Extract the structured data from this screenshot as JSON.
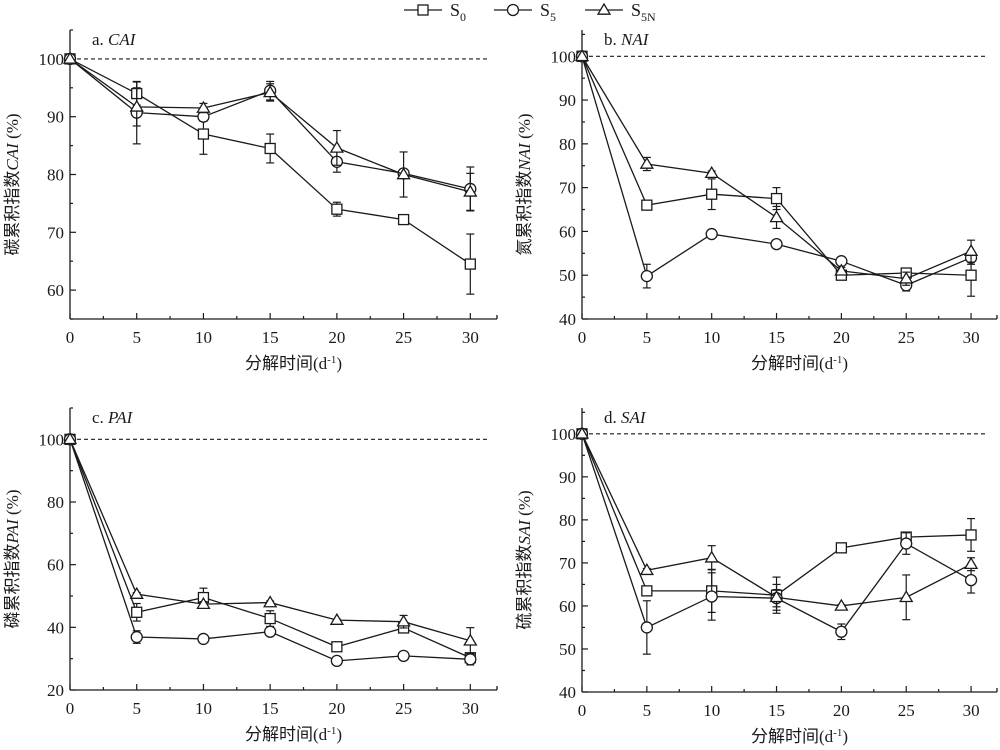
{
  "legend": [
    {
      "label": "S",
      "sub": "0",
      "marker": "square"
    },
    {
      "label": "S",
      "sub": "5",
      "marker": "circle"
    },
    {
      "label": "S",
      "sub": "5N",
      "marker": "triangle"
    }
  ],
  "chart_data": [
    {
      "type": "line",
      "panel": "a",
      "title_prefix": "a. ",
      "title_italic": "CAI",
      "ylabel_cn": "碳累积指数",
      "ylabel_italic": "CAI",
      "ylabel_suffix": " (%)",
      "xlabel": "分解时间(d",
      "xlabel_sup": "-1",
      "xlabel_close": ")",
      "x": [
        0,
        5,
        10,
        15,
        20,
        25,
        30
      ],
      "xticks": [
        0,
        5,
        10,
        15,
        20,
        25,
        30
      ],
      "xlim": [
        0,
        32
      ],
      "yticks": [
        60,
        70,
        80,
        90,
        100
      ],
      "ylim": [
        55,
        105
      ],
      "reference_line": 100,
      "series": [
        {
          "name": "S0",
          "marker": "square",
          "values": [
            100,
            94,
            87,
            84.5,
            74,
            72.2,
            64.5
          ],
          "errors": [
            0,
            2,
            3.5,
            2.5,
            1.2,
            0.3,
            5.2
          ]
        },
        {
          "name": "S5",
          "marker": "circle",
          "values": [
            100,
            90.7,
            90,
            94.5,
            82.2,
            80.2,
            77.5
          ],
          "errors": [
            0,
            5.4,
            0.8,
            1.6,
            1.8,
            0.5,
            3.8
          ]
        },
        {
          "name": "S5N",
          "marker": "triangle",
          "values": [
            100,
            91.7,
            91.5,
            94.2,
            84.6,
            80,
            77
          ],
          "errors": [
            0,
            3.3,
            0.8,
            1.5,
            3,
            3.9,
            3.2
          ]
        }
      ]
    },
    {
      "type": "line",
      "panel": "b",
      "title_prefix": "b. ",
      "title_italic": "NAI",
      "ylabel_cn": "氮累积指数",
      "ylabel_italic": "NAI",
      "ylabel_suffix": " (%)",
      "xlabel": "分解时间(d",
      "xlabel_sup": "-1",
      "xlabel_close": ")",
      "x": [
        0,
        5,
        10,
        15,
        20,
        25,
        30
      ],
      "xticks": [
        0,
        5,
        10,
        15,
        20,
        25,
        30
      ],
      "xlim": [
        0,
        32
      ],
      "yticks": [
        40,
        50,
        60,
        70,
        80,
        90,
        100
      ],
      "ylim": [
        40,
        106
      ],
      "reference_line": 100,
      "series": [
        {
          "name": "S0",
          "marker": "square",
          "values": [
            100,
            66,
            68.5,
            67.5,
            50,
            50.5,
            50
          ],
          "errors": [
            0,
            0.3,
            3.5,
            2.5,
            0.5,
            0.5,
            4.8
          ]
        },
        {
          "name": "S5",
          "marker": "circle",
          "values": [
            100,
            49.8,
            59.4,
            57.1,
            53.2,
            47.7,
            54
          ],
          "errors": [
            0,
            2.7,
            0.5,
            0.3,
            0.5,
            1.3,
            1.5
          ]
        },
        {
          "name": "S5N",
          "marker": "triangle",
          "values": [
            100,
            75.4,
            73.3,
            63.2,
            51,
            49.2,
            55.5
          ],
          "errors": [
            0,
            1.5,
            0.5,
            2.5,
            0.8,
            1.5,
            2.5
          ]
        }
      ]
    },
    {
      "type": "line",
      "panel": "c",
      "title_prefix": "c. ",
      "title_italic": "PAI",
      "ylabel_cn": "磷累积指数",
      "ylabel_italic": "PAI",
      "ylabel_suffix": " (%)",
      "xlabel": "分解时间(d",
      "xlabel_sup": "-1",
      "xlabel_close": ")",
      "x": [
        0,
        5,
        10,
        15,
        20,
        25,
        30
      ],
      "xticks": [
        0,
        5,
        10,
        15,
        20,
        25,
        30
      ],
      "xlim": [
        0,
        32
      ],
      "yticks": [
        20,
        40,
        60,
        80,
        100
      ],
      "ylim": [
        20,
        110
      ],
      "reference_line": 100,
      "series": [
        {
          "name": "S0",
          "marker": "square",
          "values": [
            100,
            44.8,
            49.5,
            42.8,
            33.8,
            39.8,
            30.3
          ],
          "errors": [
            0,
            2.8,
            3,
            2.5,
            0.7,
            1,
            1.3
          ]
        },
        {
          "name": "S5",
          "marker": "circle",
          "values": [
            100,
            36.9,
            36.3,
            38.6,
            29.3,
            30.9,
            29.8
          ],
          "errors": [
            0,
            2,
            0.8,
            0.8,
            0.4,
            0.4,
            1.8
          ]
        },
        {
          "name": "S5N",
          "marker": "triangle",
          "values": [
            100,
            50.6,
            47.4,
            47.9,
            42.3,
            41.8,
            35.7
          ],
          "errors": [
            0,
            0.5,
            0.8,
            0.5,
            0.3,
            2,
            4.2
          ]
        }
      ]
    },
    {
      "type": "line",
      "panel": "d",
      "title_prefix": "d. ",
      "title_italic": "SAI",
      "ylabel_cn": "硫累积指数",
      "ylabel_italic": "SAI",
      "ylabel_suffix": " (%)",
      "xlabel": "分解时间(d",
      "xlabel_sup": "-1",
      "xlabel_close": ")",
      "x": [
        0,
        5,
        10,
        15,
        20,
        25,
        30
      ],
      "xticks": [
        0,
        5,
        10,
        15,
        20,
        25,
        30
      ],
      "xlim": [
        0,
        32
      ],
      "yticks": [
        40,
        50,
        60,
        70,
        80,
        90,
        100
      ],
      "ylim": [
        40,
        106
      ],
      "reference_line": 100,
      "series": [
        {
          "name": "S0",
          "marker": "square",
          "values": [
            100,
            63.5,
            63.5,
            62.5,
            73.5,
            76,
            76.5
          ],
          "errors": [
            0,
            0.5,
            5,
            4.2,
            0.3,
            1,
            3.8
          ]
        },
        {
          "name": "S5",
          "marker": "circle",
          "values": [
            100,
            55,
            62.2,
            61.8,
            54,
            74.5,
            66
          ],
          "errors": [
            0,
            6.2,
            5.5,
            2,
            1.8,
            2.5,
            3
          ]
        },
        {
          "name": "S5N",
          "marker": "triangle",
          "values": [
            100,
            68.3,
            71.2,
            62,
            60,
            62,
            69.7
          ],
          "errors": [
            0,
            0.4,
            2.8,
            3,
            0.3,
            5.2,
            1.5
          ]
        }
      ]
    }
  ]
}
